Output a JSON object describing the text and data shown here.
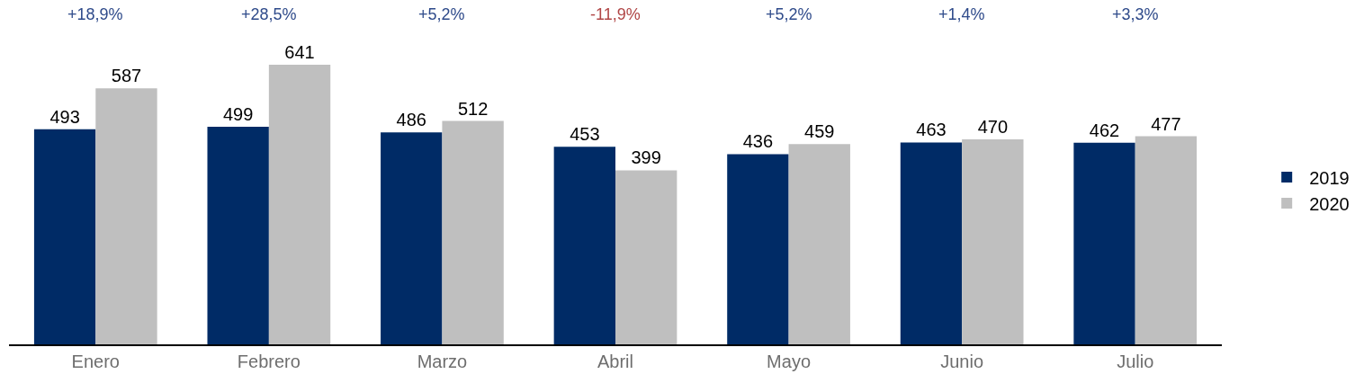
{
  "chart_data": {
    "type": "bar",
    "categories": [
      "Enero",
      "Febrero",
      "Marzo",
      "Abril",
      "Mayo",
      "Junio",
      "Julio"
    ],
    "series": [
      {
        "name": "2019",
        "color": "#002b66",
        "values": [
          493,
          499,
          486,
          453,
          436,
          463,
          462
        ]
      },
      {
        "name": "2020",
        "color": "#bfbfbf",
        "values": [
          587,
          641,
          512,
          399,
          459,
          470,
          477
        ]
      }
    ],
    "data_labels": true,
    "legend": "right",
    "annotations": [
      "+18,9%",
      "+28,5%",
      "+5,2%",
      "-11,9%",
      "+5,2%",
      "+1,4%",
      "+3,3%"
    ]
  }
}
